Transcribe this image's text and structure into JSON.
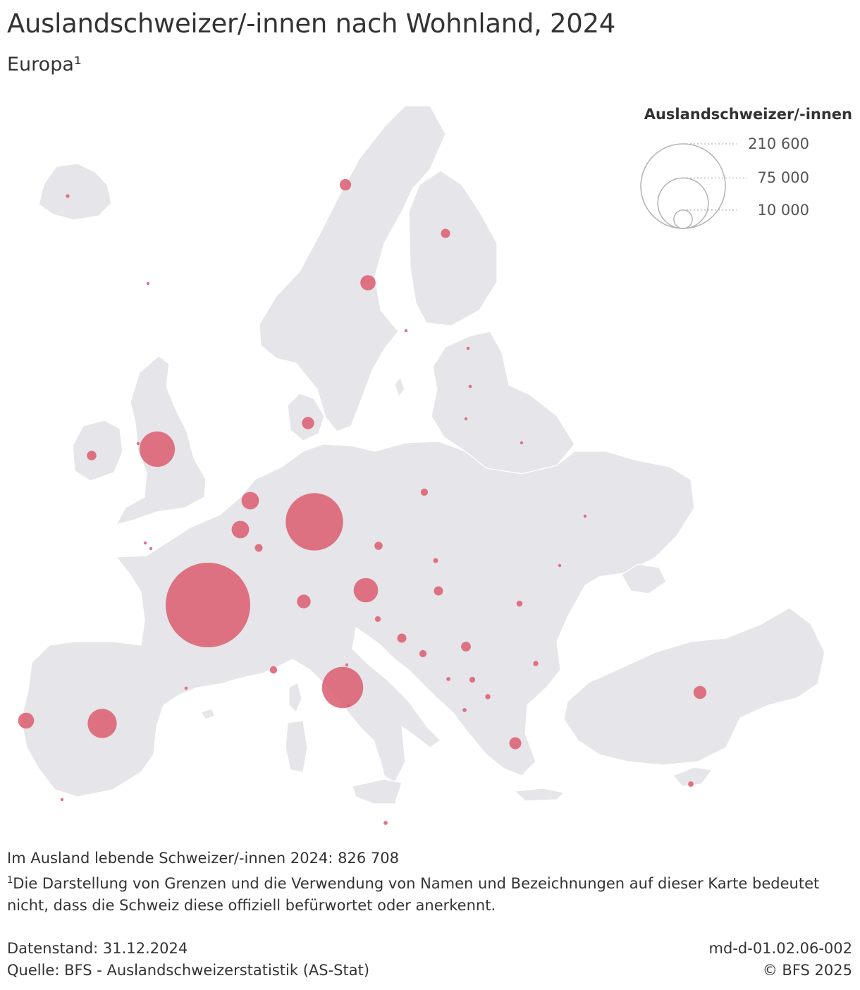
{
  "title": "Auslandschweizer/-innen nach Wohnland, 2024",
  "subtitle": "Europa¹",
  "legend": {
    "title": "Auslandschweizer/-innen",
    "items": [
      {
        "label": "210 600",
        "value": 210600
      },
      {
        "label": "75 000",
        "value": 75000
      },
      {
        "label": "10 000",
        "value": 10000
      }
    ]
  },
  "colors": {
    "bubble": "#dc5c6e",
    "land": "#e6e6ea",
    "legend_circle": "#b3b3b3"
  },
  "notes": {
    "total": "Im Ausland lebende Schweizer/-innen 2024: 826 708",
    "footnote_mark": "1",
    "footnote": "Die Darstellung von Grenzen und die Verwendung von Namen und Bezeichnungen auf dieser Karte bedeutet nicht, dass die Schweiz diese offiziell befürwortet oder anerkennt."
  },
  "footer": {
    "date": "Datenstand: 31.12.2024",
    "source": "Quelle: BFS - Auslandschweizerstatistik (AS-Stat)",
    "code": "md-d-01.02.06-002",
    "copyright": "© BFS 2025"
  },
  "markers": [
    {
      "id": "france",
      "value": 210600
    },
    {
      "id": "germany",
      "value": 97000
    },
    {
      "id": "italy",
      "value": 50000
    },
    {
      "id": "uk",
      "value": 37000
    },
    {
      "id": "spain",
      "value": 25000
    },
    {
      "id": "austria",
      "value": 17500
    },
    {
      "id": "portugal",
      "value": 7500
    },
    {
      "id": "netherlands",
      "value": 9000
    },
    {
      "id": "belgium",
      "value": 9000
    },
    {
      "id": "sweden",
      "value": 6800
    },
    {
      "id": "liechtenstein",
      "value": 5500
    },
    {
      "id": "turkey",
      "value": 5000
    },
    {
      "id": "denmark",
      "value": 4400
    },
    {
      "id": "greece",
      "value": 4200
    },
    {
      "id": "norway",
      "value": 3800
    },
    {
      "id": "ireland",
      "value": 2700
    },
    {
      "id": "finland",
      "value": 2500
    },
    {
      "id": "croatia",
      "value": 2500
    },
    {
      "id": "hungary",
      "value": 2500
    },
    {
      "id": "serbia",
      "value": 2800
    },
    {
      "id": "czechia",
      "value": 2000
    },
    {
      "id": "luxembourg",
      "value": 1800
    },
    {
      "id": "poland",
      "value": 1500
    },
    {
      "id": "bosnia",
      "value": 1500
    },
    {
      "id": "monaco",
      "value": 1600
    },
    {
      "id": "romania",
      "value": 1100
    },
    {
      "id": "slovenia",
      "value": 1000
    },
    {
      "id": "bulgaria",
      "value": 800
    },
    {
      "id": "kosovo",
      "value": 1000
    },
    {
      "id": "north-macedonia",
      "value": 800
    },
    {
      "id": "cyprus",
      "value": 900
    },
    {
      "id": "slovakia",
      "value": 700
    },
    {
      "id": "montenegro",
      "value": 500
    },
    {
      "id": "albania",
      "value": 500
    },
    {
      "id": "iceland",
      "value": 400
    },
    {
      "id": "estonia",
      "value": 300
    },
    {
      "id": "latvia",
      "value": 300
    },
    {
      "id": "lithuania",
      "value": 200
    },
    {
      "id": "belarus",
      "value": 150
    },
    {
      "id": "ukraine",
      "value": 250
    },
    {
      "id": "moldova",
      "value": 120
    },
    {
      "id": "andorra",
      "value": 300
    },
    {
      "id": "gibraltar",
      "value": 200
    },
    {
      "id": "malta",
      "value": 500
    },
    {
      "id": "san-marino",
      "value": 150
    },
    {
      "id": "vatican",
      "value": 100
    },
    {
      "id": "jersey",
      "value": 250
    },
    {
      "id": "guernsey",
      "value": 200
    },
    {
      "id": "isle-of-man",
      "value": 150
    },
    {
      "id": "faroe-islands",
      "value": 100
    },
    {
      "id": "aland",
      "value": 100
    }
  ]
}
